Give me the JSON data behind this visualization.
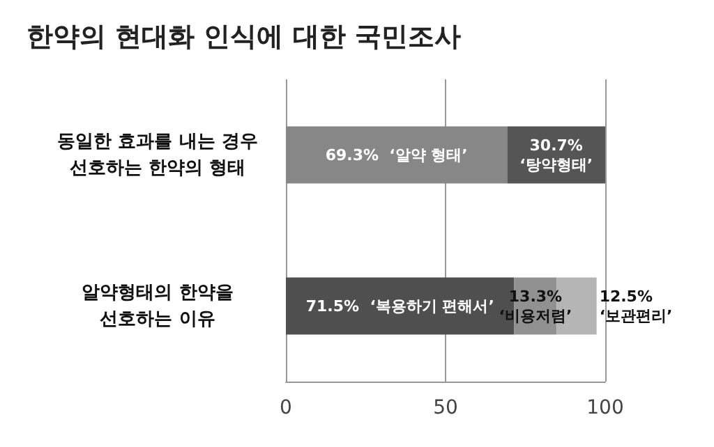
{
  "chart_data": {
    "type": "bar",
    "orientation": "horizontal",
    "stacked": true,
    "title": "한약의 현대화 인식에 대한 국민조사",
    "categories": [
      "동일한 효과를 내는 경우\n선호하는 한약의 형태",
      "알약형태의 한약을\n선호하는 이유"
    ],
    "series": [
      {
        "colors": [
          "#878787",
          "#4f4f4f"
        ],
        "values": [
          69.3,
          71.5
        ],
        "value_labels": [
          "69.3%  ‘알약 형태’",
          "71.5%  ‘복용하기 편해서’"
        ]
      },
      {
        "colors": [
          "#555555",
          "#919191"
        ],
        "values": [
          30.7,
          13.3
        ],
        "value_labels": [
          "30.7%\n‘탕약형태’",
          "13.3%\n‘비용저렴’"
        ]
      },
      {
        "colors": [
          "#b5b5b5",
          "#b5b5b5"
        ],
        "values": [
          null,
          12.5
        ],
        "value_labels": [
          null,
          "12.5%\n‘보관편리’"
        ]
      }
    ],
    "xlim": [
      0,
      100
    ],
    "xticks": [
      0,
      50,
      100
    ],
    "grid": "x"
  }
}
